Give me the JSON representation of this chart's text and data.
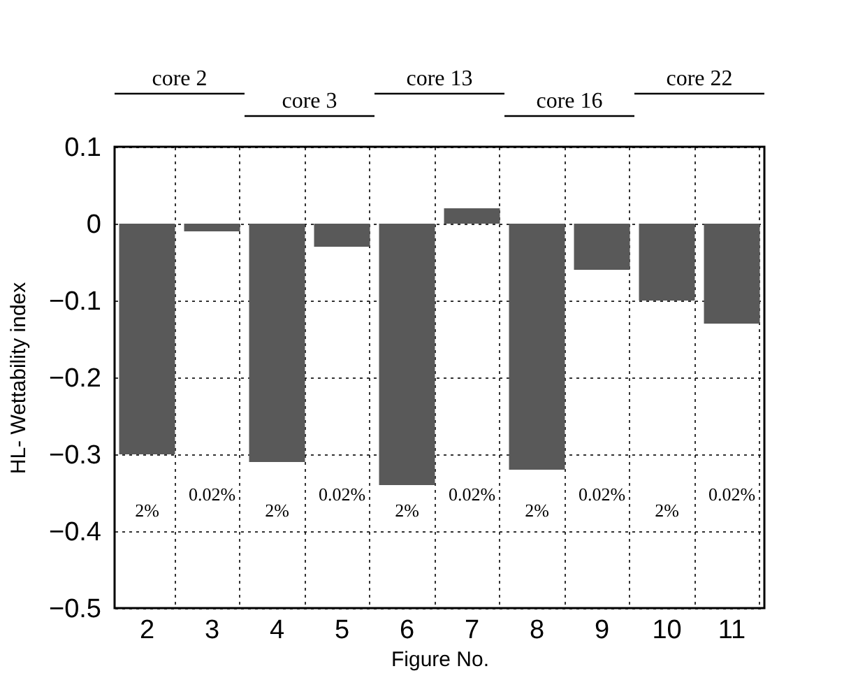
{
  "chart_data": {
    "type": "bar",
    "categories": [
      "2",
      "3",
      "4",
      "5",
      "6",
      "7",
      "8",
      "9",
      "10",
      "11"
    ],
    "values": [
      -0.3,
      -0.01,
      -0.31,
      -0.03,
      -0.34,
      0.02,
      -0.32,
      -0.06,
      -0.1,
      -0.13
    ],
    "color": "#595959",
    "xlabel": "Figure No.",
    "ylabel": "HL- Wettability index",
    "ylim": [
      -0.5,
      0.1
    ],
    "yticks": [
      -0.5,
      -0.4,
      -0.3,
      -0.2,
      -0.1,
      0,
      0.1
    ],
    "grid": true,
    "annotations": [
      "core 2",
      "core 3",
      "core 13",
      "core 16",
      "core 22",
      "2%",
      "0.02%",
      "2%",
      "0.02%",
      "2%",
      "0.02%",
      "2%",
      "0.02%",
      "2%",
      "0.02%"
    ]
  }
}
